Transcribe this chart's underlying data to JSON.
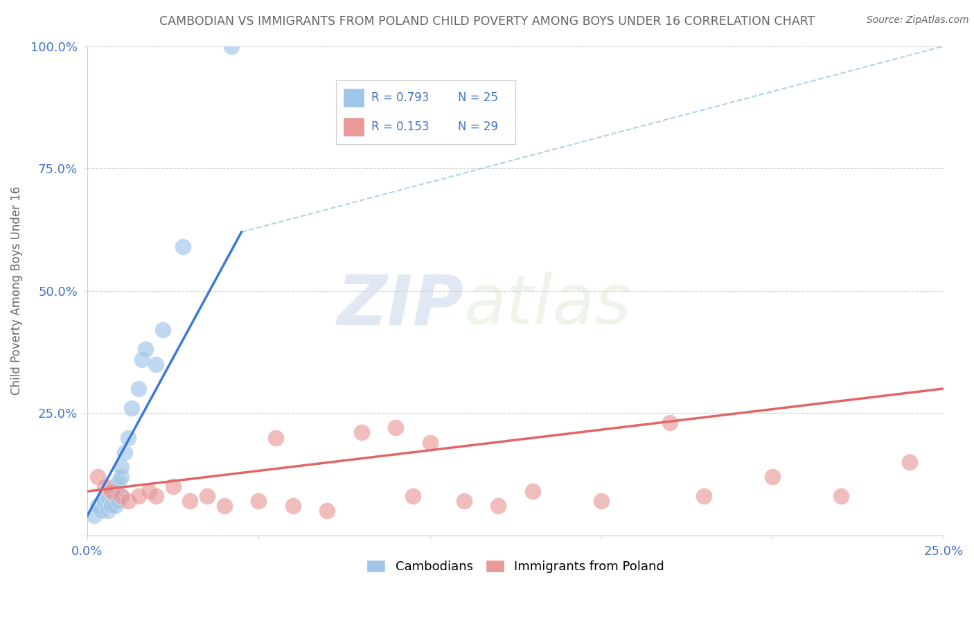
{
  "title": "CAMBODIAN VS IMMIGRANTS FROM POLAND CHILD POVERTY AMONG BOYS UNDER 16 CORRELATION CHART",
  "source": "Source: ZipAtlas.com",
  "ylabel": "Child Poverty Among Boys Under 16",
  "xlim": [
    0.0,
    0.25
  ],
  "ylim": [
    0.0,
    1.0
  ],
  "yticks": [
    0.0,
    0.25,
    0.5,
    0.75,
    1.0
  ],
  "ytick_labels": [
    "",
    "25.0%",
    "50.0%",
    "75.0%",
    "100.0%"
  ],
  "xticks": [
    0.0,
    0.05,
    0.1,
    0.15,
    0.2,
    0.25
  ],
  "xtick_labels": [
    "0.0%",
    "",
    "",
    "",
    "",
    "25.0%"
  ],
  "watermark_zip": "ZIP",
  "watermark_atlas": "atlas",
  "legend_R_cambodian": "R = 0.793",
  "legend_N_cambodian": "N = 25",
  "legend_R_poland": "R = 0.153",
  "legend_N_poland": "N = 29",
  "cambodian_color": "#9fc5e8",
  "poland_color": "#ea9999",
  "cambodian_line_color": "#3c78d8",
  "poland_line_color": "#e06666",
  "dashed_line_color": "#9fc5e8",
  "grid_color": "#cccccc",
  "title_color": "#666666",
  "axis_label_color": "#666666",
  "tick_label_color": "#4472c4",
  "source_color": "#666666",
  "legend_text_color": "#4472c4",
  "cambodian_x": [
    0.002,
    0.003,
    0.004,
    0.005,
    0.006,
    0.006,
    0.007,
    0.007,
    0.008,
    0.008,
    0.009,
    0.009,
    0.01,
    0.01,
    0.01,
    0.011,
    0.012,
    0.013,
    0.015,
    0.016,
    0.017,
    0.02,
    0.022,
    0.028,
    0.042
  ],
  "cambodian_y": [
    0.04,
    0.06,
    0.05,
    0.07,
    0.05,
    0.08,
    0.06,
    0.09,
    0.06,
    0.1,
    0.07,
    0.11,
    0.08,
    0.12,
    0.14,
    0.17,
    0.2,
    0.26,
    0.3,
    0.36,
    0.38,
    0.35,
    0.42,
    0.59,
    1.0
  ],
  "poland_x": [
    0.003,
    0.005,
    0.007,
    0.01,
    0.012,
    0.015,
    0.018,
    0.02,
    0.025,
    0.03,
    0.035,
    0.04,
    0.05,
    0.055,
    0.06,
    0.07,
    0.08,
    0.09,
    0.095,
    0.1,
    0.11,
    0.12,
    0.13,
    0.15,
    0.17,
    0.18,
    0.2,
    0.22,
    0.24
  ],
  "poland_y": [
    0.12,
    0.1,
    0.09,
    0.08,
    0.07,
    0.08,
    0.09,
    0.08,
    0.1,
    0.07,
    0.08,
    0.06,
    0.07,
    0.2,
    0.06,
    0.05,
    0.21,
    0.22,
    0.08,
    0.19,
    0.07,
    0.06,
    0.09,
    0.07,
    0.23,
    0.08,
    0.12,
    0.08,
    0.15
  ],
  "cambodian_line_x": [
    0.0,
    0.045
  ],
  "cambodian_line_y": [
    0.04,
    0.62
  ],
  "poland_line_x": [
    0.0,
    0.25
  ],
  "poland_line_y": [
    0.09,
    0.3
  ],
  "dashed_line_x": [
    0.045,
    0.25
  ],
  "dashed_line_y": [
    0.62,
    1.0
  ]
}
